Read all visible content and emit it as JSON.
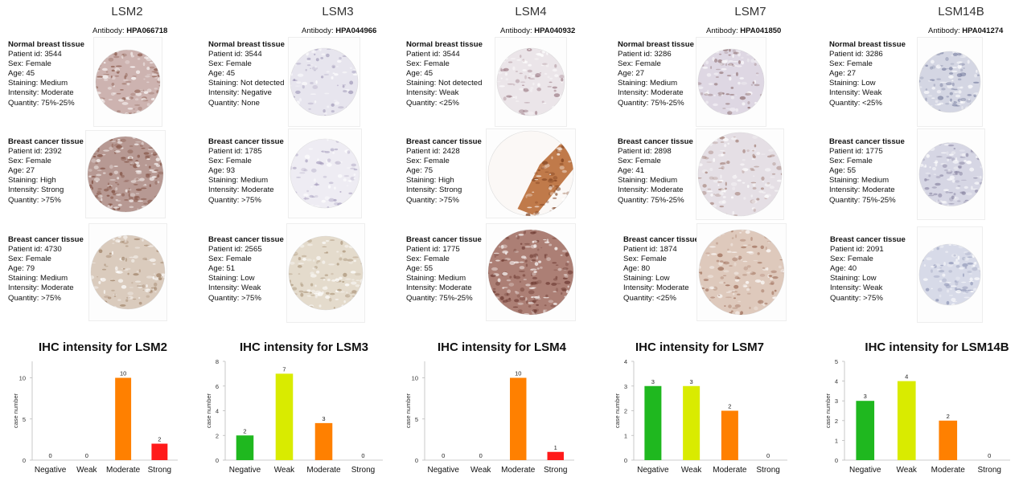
{
  "columns": [
    {
      "gene": "LSM2",
      "antibody_label": "Antibody:",
      "antibody": "HPA066718",
      "samples": [
        {
          "title": "Normal  breast tissue",
          "patient": "Patient id: 3544",
          "sex": "Sex: Female",
          "age": "Age: 45",
          "staining": "Staining: Medium",
          "intensity": "Intensity: Moderate",
          "quantity": "Quantity: 75%-25%"
        },
        {
          "title": "Breast cancer tissue",
          "patient": "Patient id: 2392",
          "sex": "Sex: Female",
          "age": "Age: 27",
          "staining": "Staining: High",
          "intensity": "Intensity: Strong",
          "quantity": "Quantity: >75%"
        },
        {
          "title": "Breast cancer tissue",
          "patient": "Patient id: 4730",
          "sex": "Sex: Female",
          "age": "Age: 79",
          "staining": "Staining: Medium",
          "intensity": "Intensity: Moderate",
          "quantity": "Quantity: >75%"
        }
      ]
    },
    {
      "gene": "LSM3",
      "antibody_label": "Antibody:",
      "antibody": "HPA044966",
      "samples": [
        {
          "title": "Normal  breast tissue",
          "patient": "Patient id: 3544",
          "sex": "Sex: Female",
          "age": "Age: 45",
          "staining": "Staining: Not detected",
          "intensity": "Intensity: Negative",
          "quantity": "Quantity: None"
        },
        {
          "title": "Breast cancer tissue",
          "patient": "Patient id: 1785",
          "sex": "Sex: Female",
          "age": "Age: 93",
          "staining": "Staining: Medium",
          "intensity": "Intensity: Moderate",
          "quantity": "Quantity: >75%"
        },
        {
          "title": "Breast cancer tissue",
          "patient": "Patient id: 2565",
          "sex": "Sex: Female",
          "age": "Age: 51",
          "staining": "Staining: Low",
          "intensity": "Intensity: Weak",
          "quantity": "Quantity: >75%"
        }
      ]
    },
    {
      "gene": "LSM4",
      "antibody_label": "Antibody:",
      "antibody": "HPA040932",
      "samples": [
        {
          "title": "Normal  breast tissue",
          "patient": "Patient id: 3544",
          "sex": "Sex: Female",
          "age": "Age: 45",
          "staining": "Staining: Not detected",
          "intensity": "Intensity: Weak",
          "quantity": "Quantity: <25%"
        },
        {
          "title": "Breast cancer tissue",
          "patient": "Patient id: 2428",
          "sex": "Sex: Female",
          "age": "Age: 75",
          "staining": "Staining: High",
          "intensity": "Intensity: Strong",
          "quantity": "Quantity: >75%"
        },
        {
          "title": "Breast cancer tissue",
          "patient": "Patient id: 1775",
          "sex": "Sex: Female",
          "age": "Age: 55",
          "staining": "Staining: Medium",
          "intensity": "Intensity: Moderate",
          "quantity": "Quantity: 75%-25%"
        }
      ]
    },
    {
      "gene": "LSM7",
      "antibody_label": "Antibody:",
      "antibody": "HPA041850",
      "samples": [
        {
          "title": "Normal  breast tissue",
          "patient": "Patient id: 3286",
          "sex": "Sex: Female",
          "age": "Age: 27",
          "staining": "Staining: Medium",
          "intensity": "Intensity: Moderate",
          "quantity": "Quantity: 75%-25%"
        },
        {
          "title": "Breast cancer tissue",
          "patient": "Patient id: 2898",
          "sex": "Sex: Female",
          "age": "Age: 41",
          "staining": "Staining: Medium",
          "intensity": "Intensity: Moderate",
          "quantity": "Quantity: 75%-25%"
        },
        {
          "title": "Breast cancer tissue",
          "patient": "Patient id: 1874",
          "sex": "Sex: Female",
          "age": "Age: 80",
          "staining": "Staining: Low",
          "intensity": "Intensity: Moderate",
          "quantity": "Quantity: <25%"
        }
      ]
    },
    {
      "gene": "LSM14B",
      "antibody_label": "Antibody:",
      "antibody": "HPA041274",
      "samples": [
        {
          "title": "Normal  breast tissue",
          "patient": "Patient id: 3286",
          "sex": "Sex: Female",
          "age": "Age: 27",
          "staining": "Staining: Low",
          "intensity": "Intensity: Weak",
          "quantity": "Quantity: <25%"
        },
        {
          "title": "Breast cancer tissue",
          "patient": "Patient id: 1775",
          "sex": "Sex: Female",
          "age": "Age: 55",
          "staining": "Staining: Medium",
          "intensity": "Intensity: Moderate",
          "quantity": "Quantity: 75%-25%"
        },
        {
          "title": "Breast cancer tissue",
          "patient": "Patient id: 2091",
          "sex": "Sex: Female",
          "age": "Age: 40",
          "staining": "Staining: Low",
          "intensity": "Intensity: Weak",
          "quantity": "Quantity: >75%"
        }
      ]
    }
  ],
  "colors": {
    "negative": "#1fb81f",
    "weak": "#d9eb00",
    "moderate": "#ff8000",
    "strong": "#ff1a1a"
  },
  "chart_data": [
    {
      "type": "bar",
      "title": "IHC intensity for LSM2",
      "ylabel": "case number",
      "categories": [
        "Negative",
        "Weak",
        "Moderate",
        "Strong"
      ],
      "values": [
        0,
        0,
        10,
        2
      ],
      "ylim": [
        0,
        12
      ],
      "yticks": [
        0,
        5,
        10
      ]
    },
    {
      "type": "bar",
      "title": "IHC intensity for LSM3",
      "ylabel": "case number",
      "categories": [
        "Negative",
        "Weak",
        "Moderate",
        "Strong"
      ],
      "values": [
        2,
        7,
        3,
        0
      ],
      "ylim": [
        0,
        8
      ],
      "yticks": [
        0,
        2,
        4,
        6,
        8
      ]
    },
    {
      "type": "bar",
      "title": "IHC intensity for LSM4",
      "ylabel": "case number",
      "categories": [
        "Negative",
        "Weak",
        "Moderate",
        "Strong"
      ],
      "values": [
        0,
        0,
        10,
        1
      ],
      "ylim": [
        0,
        12
      ],
      "yticks": [
        0,
        5,
        10
      ]
    },
    {
      "type": "bar",
      "title": "IHC intensity for LSM7",
      "ylabel": "case number",
      "categories": [
        "Negative",
        "Weak",
        "Moderate",
        "Strong"
      ],
      "values": [
        3,
        3,
        2,
        0
      ],
      "ylim": [
        0,
        4
      ],
      "yticks": [
        0,
        1,
        2,
        3,
        4
      ]
    },
    {
      "type": "bar",
      "title": "IHC intensity for LSM14B",
      "ylabel": "case number",
      "categories": [
        "Negative",
        "Weak",
        "Moderate",
        "Strong"
      ],
      "values": [
        3,
        4,
        2,
        0
      ],
      "ylim": [
        0,
        5
      ],
      "yticks": [
        0,
        1,
        2,
        3,
        4,
        5
      ]
    }
  ]
}
